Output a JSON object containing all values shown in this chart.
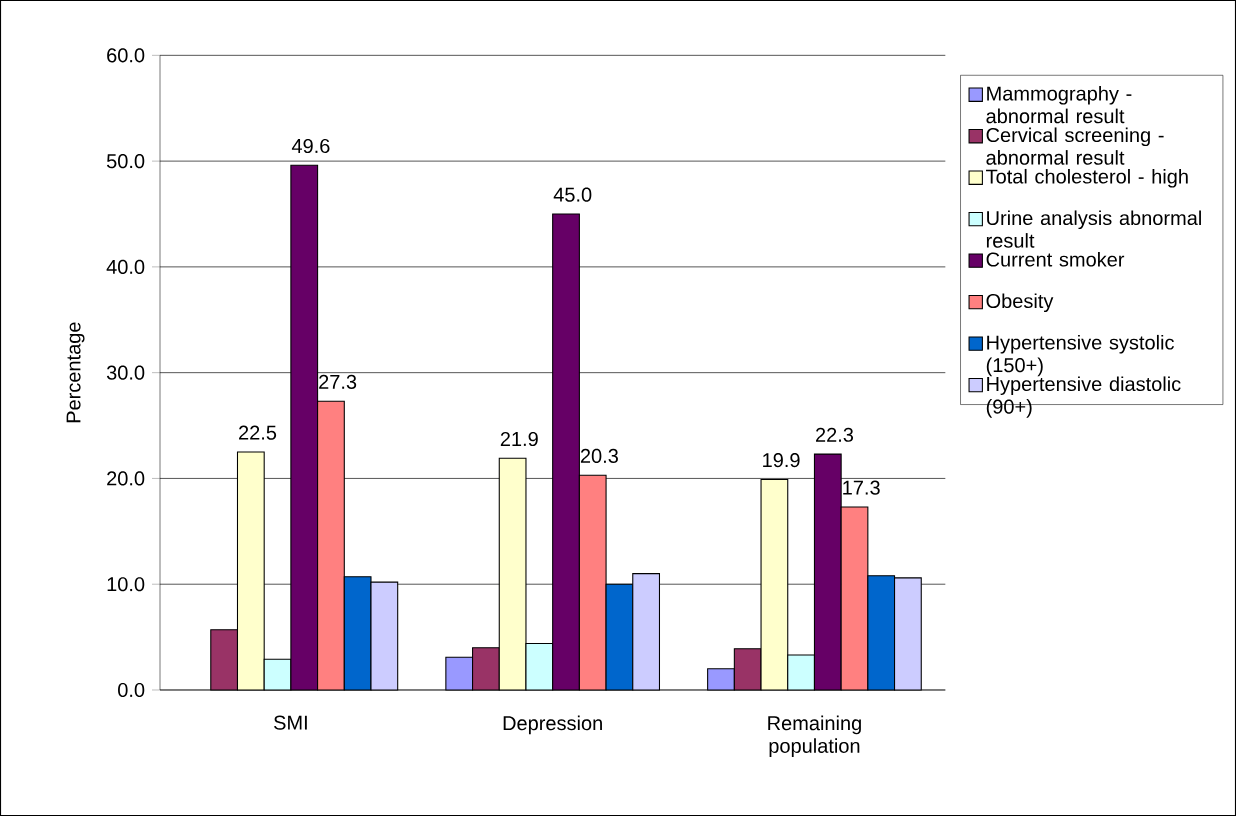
{
  "chart_data": {
    "type": "bar",
    "ylabel": "Percentage",
    "categories": [
      "SMI",
      "Depression",
      "Remaining population"
    ],
    "series": [
      {
        "name": "Mammography - abnormal result",
        "color": "#9999ff",
        "values": [
          null,
          3.1,
          2.0
        ]
      },
      {
        "name": "Cervical screening - abnormal result",
        "color": "#993366",
        "values": [
          5.7,
          4.0,
          3.9
        ]
      },
      {
        "name": "Total cholesterol - high",
        "color": "#ffffcc",
        "values": [
          22.5,
          21.9,
          19.9
        ],
        "value_labels": [
          "22.5",
          "21.9",
          "19.9"
        ]
      },
      {
        "name": "Urine analysis abnormal result",
        "color": "#ccffff",
        "values": [
          2.9,
          4.4,
          3.3
        ]
      },
      {
        "name": "Current smoker",
        "color": "#660066",
        "values": [
          49.6,
          45.0,
          22.3
        ],
        "value_labels": [
          "49.6",
          "45.0",
          "22.3"
        ]
      },
      {
        "name": "Obesity",
        "color": "#ff8080",
        "values": [
          27.3,
          20.3,
          17.3
        ],
        "value_labels": [
          "27.3",
          "20.3",
          "17.3"
        ]
      },
      {
        "name": "Hypertensive systolic (150+)",
        "color": "#0066cc",
        "values": [
          10.7,
          10.0,
          10.8
        ]
      },
      {
        "name": "Hypertensive diastolic (90+)",
        "color": "#ccccff",
        "values": [
          10.2,
          11.0,
          10.6
        ]
      }
    ],
    "ylim": [
      0,
      60
    ],
    "yticks": [
      {
        "value": 0,
        "label": "0.0"
      },
      {
        "value": 10,
        "label": "10.0"
      },
      {
        "value": 20,
        "label": "20.0"
      },
      {
        "value": 30,
        "label": "30.0"
      },
      {
        "value": 40,
        "label": "40.0"
      },
      {
        "value": 50,
        "label": "50.0"
      },
      {
        "value": 60,
        "label": "60.0"
      }
    ],
    "grid": "y",
    "legend": "right"
  }
}
